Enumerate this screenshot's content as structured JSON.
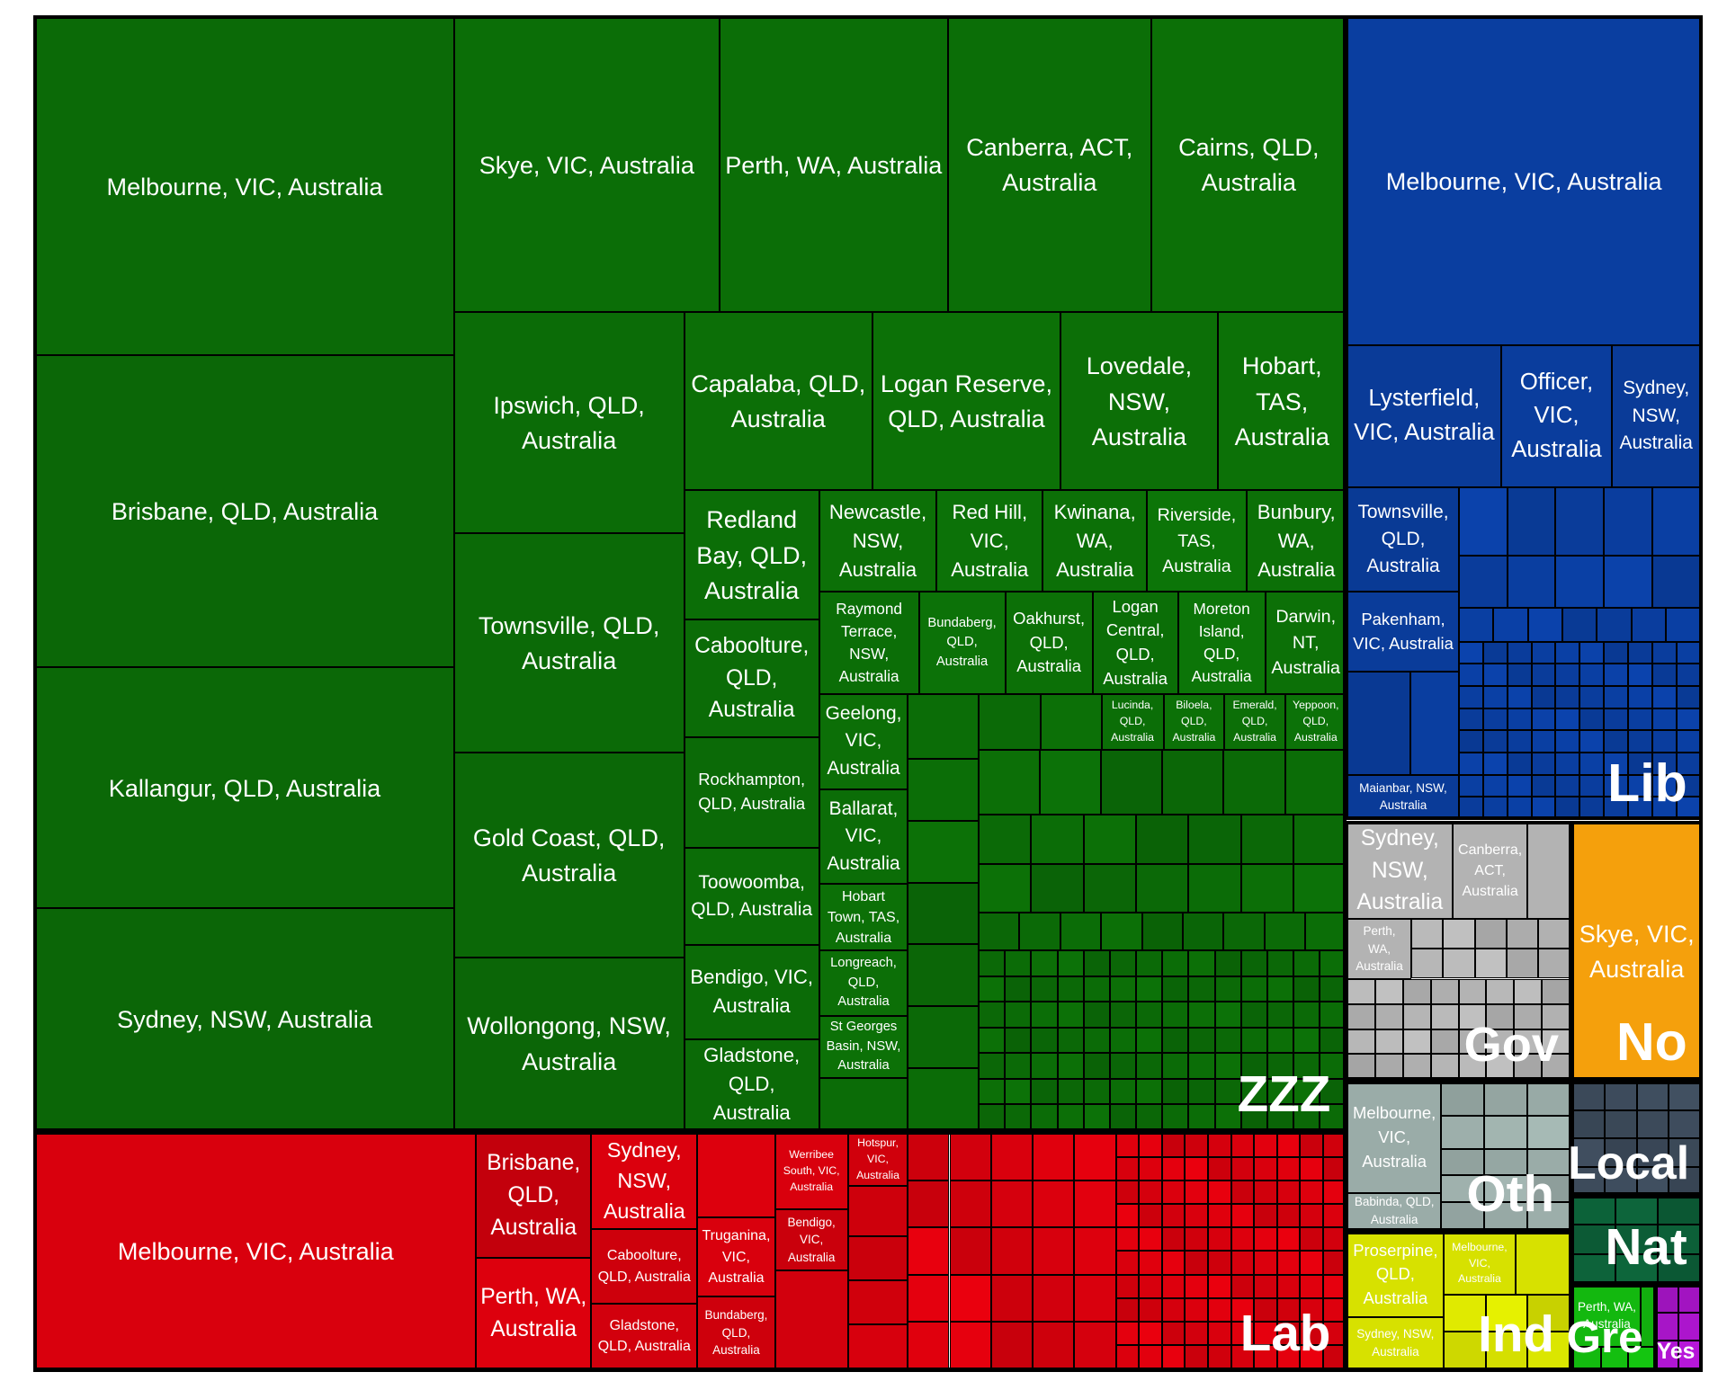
{
  "chart_data": {
    "type": "treemap",
    "title": "",
    "value_unit": "",
    "groups": [
      {
        "name": "ZZZ",
        "color": "#0b6a07",
        "items": [
          {
            "label": "Melbourne, VIC, Australia",
            "value": 1220
          },
          {
            "label": "Brisbane, QLD, Australia",
            "value": 1145
          },
          {
            "label": "Kallangur, QLD, Australia",
            "value": 1005
          },
          {
            "label": "Sydney, NSW, Australia",
            "value": 855
          },
          {
            "label": "Skye, VIC, Australia",
            "value": 640
          },
          {
            "label": "Perth, WA, Australia",
            "value": 550
          },
          {
            "label": "Canberra, ACT, Australia",
            "value": 490
          },
          {
            "label": "Cairns, QLD, Australia",
            "value": 465
          },
          {
            "label": "Ipswich, QLD, Australia",
            "value": 410
          },
          {
            "label": "Townsville, QLD, Australia",
            "value": 410
          },
          {
            "label": "Gold Coast, QLD, Australia",
            "value": 385
          },
          {
            "label": "Wollongong, NSW, Australia",
            "value": 325
          },
          {
            "label": "Capalaba, QLD, Australia",
            "value": 275
          },
          {
            "label": "Logan Reserve, QLD, Australia",
            "value": 275
          },
          {
            "label": "Lovedale, NSW, Australia",
            "value": 225
          },
          {
            "label": "Hobart, TAS, Australia",
            "value": 185
          },
          {
            "label": "Redland Bay, QLD, Australia",
            "value": 145
          },
          {
            "label": "Caboolture, QLD, Australia",
            "value": 130
          },
          {
            "label": "Newcastle, NSW, Australia",
            "value": 110
          },
          {
            "label": "Red Hill, VIC, Australia",
            "value": 100
          },
          {
            "label": "Kwinana, WA, Australia",
            "value": 95
          },
          {
            "label": "Riverside, TAS, Australia",
            "value": 92
          },
          {
            "label": "Bunbury, WA, Australia",
            "value": 90
          },
          {
            "label": "Rockhampton, QLD, Australia",
            "value": 105
          },
          {
            "label": "Toowoomba, QLD, Australia",
            "value": 110
          },
          {
            "label": "Bendigo, VIC, Australia",
            "value": 105
          },
          {
            "label": "Gladstone, QLD, Australia",
            "value": 105
          },
          {
            "label": "Raymond Terrace, NSW, Australia",
            "value": 90
          },
          {
            "label": "Bundaberg, QLD, Australia",
            "value": 84
          },
          {
            "label": "Oakhurst, QLD, Australia",
            "value": 84
          },
          {
            "label": "Logan Central, QLD, Australia",
            "value": 84
          },
          {
            "label": "Moreton Island, QLD, Australia",
            "value": 84
          },
          {
            "label": "Darwin, NT, Australia",
            "value": 84
          },
          {
            "label": "Geelong, VIC, Australia",
            "value": 75
          },
          {
            "label": "Ballarat, VIC, Australia",
            "value": 75
          },
          {
            "label": "Hobart Town, TAS, Australia",
            "value": 58
          },
          {
            "label": "Longreach, QLD, Australia",
            "value": 58
          },
          {
            "label": "St Georges Basin, NSW, Australia",
            "value": 58
          },
          {
            "label": "Lucinda, QLD, Australia",
            "value": 40
          },
          {
            "label": "Biloela, QLD, Australia",
            "value": 40
          },
          {
            "label": "Emerald, QLD, Australia",
            "value": 40
          },
          {
            "label": "Yeppoon, QLD, Australia",
            "value": 40
          }
        ]
      },
      {
        "name": "Lab",
        "color": "#d9000d",
        "items": [
          {
            "label": "Melbourne, VIC, Australia",
            "value": 1170
          },
          {
            "label": "Brisbane, QLD, Australia",
            "value": 270
          },
          {
            "label": "Perth, WA, Australia",
            "value": 290
          },
          {
            "label": "Sydney, NSW, Australia",
            "value": 200
          },
          {
            "label": "Caboolture, QLD, Australia",
            "value": 110
          },
          {
            "label": "Gladstone, QLD, Australia",
            "value": 100
          },
          {
            "label": "Truganina, VIC, Australia",
            "value": 115
          },
          {
            "label": "Bundaberg, QLD, Australia",
            "value": 90
          },
          {
            "label": "Werribee South, VIC, Australia",
            "value": 95
          },
          {
            "label": "Bendigo, VIC, Australia",
            "value": 80
          },
          {
            "label": "Hotspur, VIC, Australia",
            "value": 70
          }
        ]
      },
      {
        "name": "Lib",
        "color": "#0a3ea0",
        "items": [
          {
            "label": "Melbourne, VIC, Australia",
            "value": 1000
          },
          {
            "label": "Lysterfield, VIC, Australia",
            "value": 285
          },
          {
            "label": "Officer, VIC, Australia",
            "value": 205
          },
          {
            "label": "Sydney, NSW, Australia",
            "value": 165
          },
          {
            "label": "Townsville, QLD, Australia",
            "value": 95
          },
          {
            "label": "Pakenham, VIC, Australia",
            "value": 80
          },
          {
            "label": "Maianbar, NSW, Australia",
            "value": 40
          }
        ]
      },
      {
        "name": "Gov",
        "color": "#b3b3b3",
        "items": [
          {
            "label": "Sydney, NSW, Australia",
            "value": 85
          },
          {
            "label": "Canberra, ACT, Australia",
            "value": 75
          },
          {
            "label": "Perth, WA, Australia",
            "value": 45
          }
        ]
      },
      {
        "name": "No",
        "color": "#f5a00c",
        "items": [
          {
            "label": "Skye, VIC, Australia",
            "value": 425
          }
        ]
      },
      {
        "name": "Oth",
        "color": "#9aaca8",
        "items": [
          {
            "label": "Melbourne, VIC, Australia",
            "value": 110
          },
          {
            "label": "Babinda, QLD, Australia",
            "value": 40
          }
        ]
      },
      {
        "name": "Local",
        "color": "#3c4a5a",
        "items": []
      },
      {
        "name": "Nat",
        "color": "#0c5e37",
        "items": []
      },
      {
        "name": "Ind",
        "color": "#d7e100",
        "items": [
          {
            "label": "Proserpine, QLD, Australia",
            "value": 95
          },
          {
            "label": "Melbourne, VIC, Australia",
            "value": 60
          },
          {
            "label": "Sydney, NSW, Australia",
            "value": 45
          }
        ]
      },
      {
        "name": "Gre",
        "color": "#13b80f",
        "items": [
          {
            "label": "Perth, WA, Australia",
            "value": 45
          }
        ]
      },
      {
        "name": "Yes",
        "color": "#a915c9",
        "items": []
      }
    ]
  }
}
